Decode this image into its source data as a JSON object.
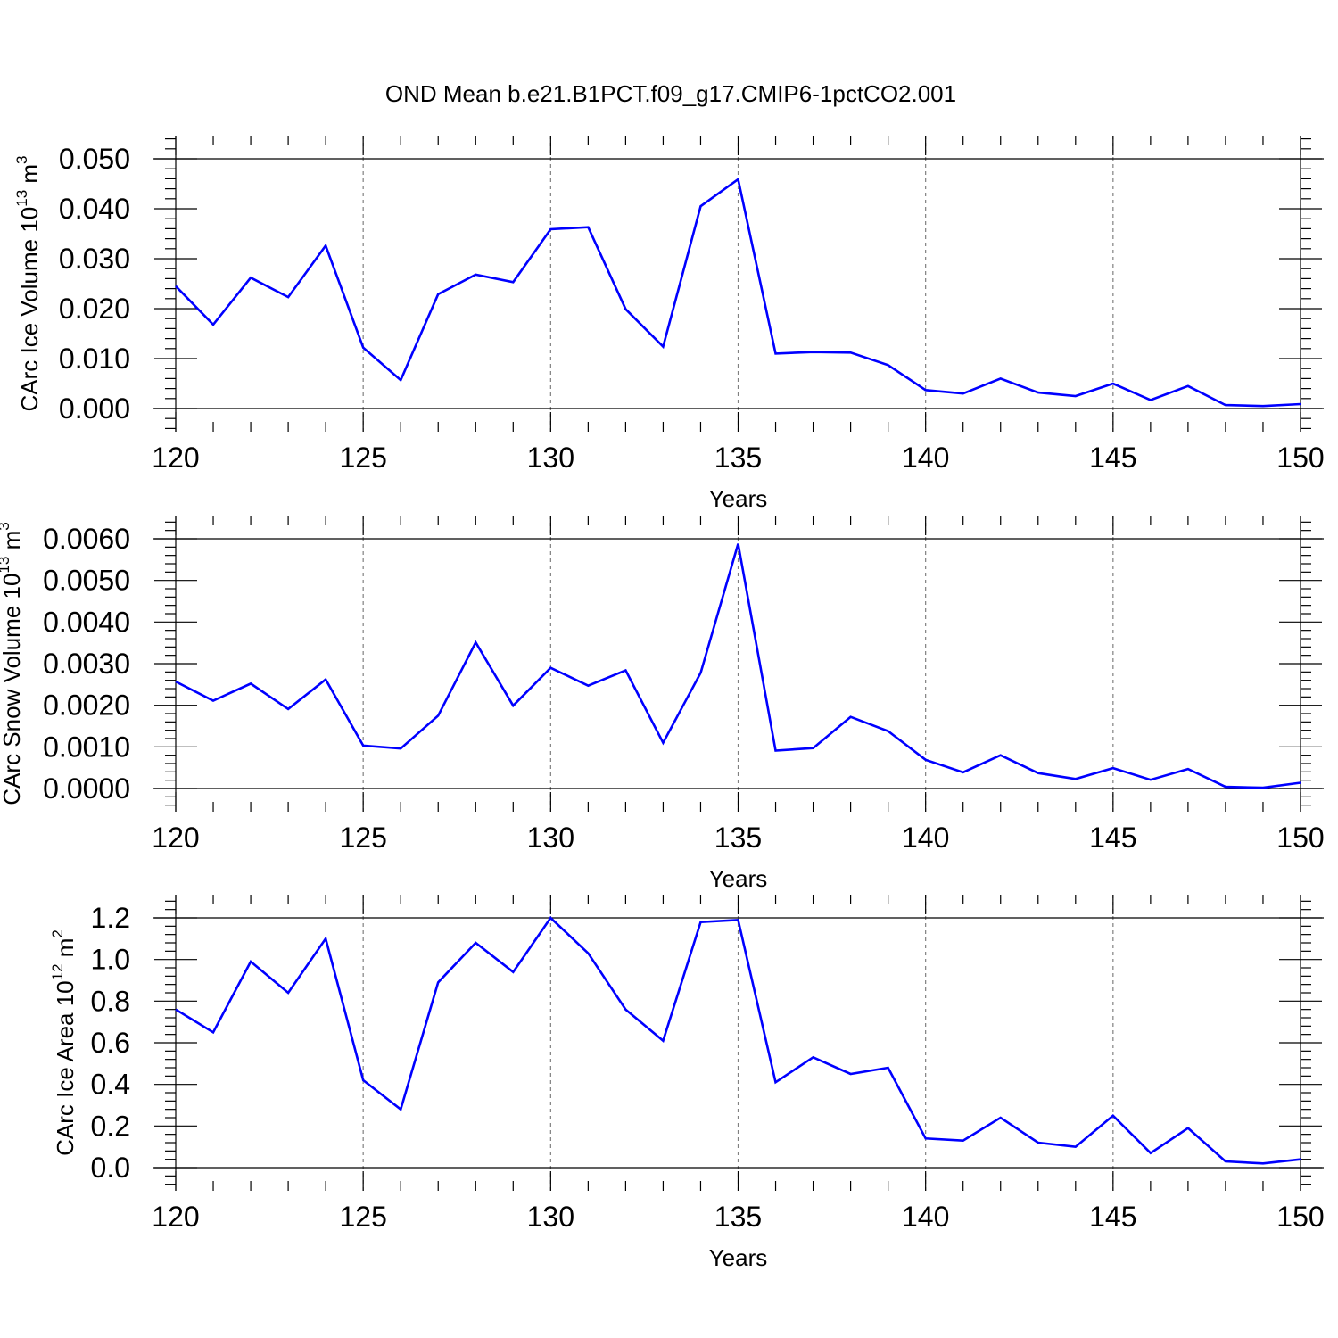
{
  "title": "OND Mean b.e21.B1PCT.f09_g17.CMIP6-1pctCO2.001",
  "colors": {
    "series": "#0000ff",
    "axis": "#000000",
    "grid": "#808080",
    "background": "#ffffff"
  },
  "chart_data": [
    {
      "type": "line",
      "xlabel": "Years",
      "ylabel": "CArc Ice Volume 10",
      "ylabel_exp": "13",
      "ylabel_unit": " m",
      "ylabel_unit_exp": "3",
      "xlim": [
        120,
        150
      ],
      "ylim": [
        0.0,
        0.05
      ],
      "yticks": [
        "0.000",
        "0.010",
        "0.020",
        "0.030",
        "0.040",
        "0.050"
      ],
      "xticks": [
        "120",
        "125",
        "130",
        "135",
        "140",
        "145",
        "150"
      ],
      "grid": "vertical dashed at major x ticks",
      "series": [
        {
          "x": [
            120,
            121,
            122,
            123,
            124,
            125,
            126,
            127,
            128,
            129,
            130,
            131,
            132,
            133,
            134,
            135,
            136,
            137,
            138,
            139,
            140,
            141,
            142,
            143,
            144,
            145,
            146,
            147,
            148,
            149,
            150
          ],
          "values": [
            0.0245,
            0.0168,
            0.0262,
            0.0223,
            0.0326,
            0.0122,
            0.0057,
            0.0229,
            0.0268,
            0.0253,
            0.0359,
            0.0363,
            0.0199,
            0.0124,
            0.0405,
            0.0459,
            0.011,
            0.0113,
            0.0112,
            0.0087,
            0.0037,
            0.003,
            0.006,
            0.0032,
            0.0025,
            0.005,
            0.0017,
            0.0045,
            0.0007,
            0.0005,
            0.0009
          ]
        }
      ]
    },
    {
      "type": "line",
      "xlabel": "Years",
      "ylabel": "CArc Snow Volume 10",
      "ylabel_exp": "13",
      "ylabel_unit": " m",
      "ylabel_unit_exp": "3",
      "xlim": [
        120,
        150
      ],
      "ylim": [
        0.0,
        0.006
      ],
      "yticks": [
        "0.0000",
        "0.0010",
        "0.0020",
        "0.0030",
        "0.0040",
        "0.0050",
        "0.0060"
      ],
      "xticks": [
        "120",
        "125",
        "130",
        "135",
        "140",
        "145",
        "150"
      ],
      "grid": "vertical dashed at major x ticks",
      "series": [
        {
          "x": [
            120,
            121,
            122,
            123,
            124,
            125,
            126,
            127,
            128,
            129,
            130,
            131,
            132,
            133,
            134,
            135,
            136,
            137,
            138,
            139,
            140,
            141,
            142,
            143,
            144,
            145,
            146,
            147,
            148,
            149,
            150
          ],
          "values": [
            0.00257,
            0.00211,
            0.00252,
            0.00191,
            0.00262,
            0.00103,
            0.00096,
            0.00175,
            0.00351,
            0.00199,
            0.0029,
            0.00247,
            0.00284,
            0.0011,
            0.00278,
            0.00588,
            0.00091,
            0.00097,
            0.00172,
            0.00138,
            0.00069,
            0.00039,
            0.0008,
            0.00037,
            0.00023,
            0.00049,
            0.00021,
            0.00047,
            4e-05,
            2e-05,
            0.00014
          ]
        }
      ]
    },
    {
      "type": "line",
      "xlabel": "Years",
      "ylabel": "CArc Ice Area 10",
      "ylabel_exp": "12",
      "ylabel_unit": " m",
      "ylabel_unit_exp": "2",
      "xlim": [
        120,
        150
      ],
      "ylim": [
        0.0,
        1.2
      ],
      "yticks": [
        "0.0",
        "0.2",
        "0.4",
        "0.6",
        "0.8",
        "1.0",
        "1.2"
      ],
      "xticks": [
        "120",
        "125",
        "130",
        "135",
        "140",
        "145",
        "150"
      ],
      "grid": "vertical dashed at major x ticks",
      "series": [
        {
          "x": [
            120,
            121,
            122,
            123,
            124,
            125,
            126,
            127,
            128,
            129,
            130,
            131,
            132,
            133,
            134,
            135,
            136,
            137,
            138,
            139,
            140,
            141,
            142,
            143,
            144,
            145,
            146,
            147,
            148,
            149,
            150
          ],
          "values": [
            0.76,
            0.65,
            0.99,
            0.84,
            1.1,
            0.42,
            0.28,
            0.89,
            1.08,
            0.94,
            1.2,
            1.03,
            0.76,
            0.61,
            1.18,
            1.19,
            0.41,
            0.53,
            0.45,
            0.48,
            0.14,
            0.13,
            0.24,
            0.12,
            0.1,
            0.25,
            0.07,
            0.19,
            0.03,
            0.02,
            0.04
          ]
        }
      ]
    }
  ]
}
